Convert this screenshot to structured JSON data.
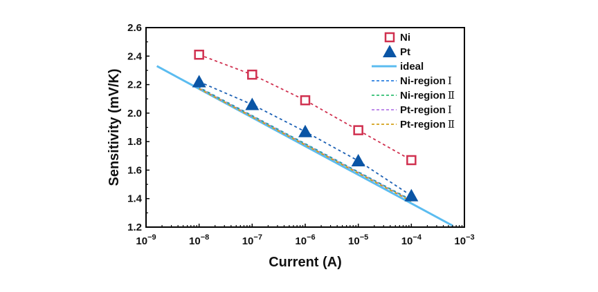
{
  "chart_data": {
    "type": "scatter",
    "title": "",
    "xlabel": "Current (A)",
    "ylabel": "Sensitivity (mV/K)",
    "xscale": "log",
    "xlim": [
      1e-09,
      0.001
    ],
    "ylim": [
      1.2,
      2.6
    ],
    "x_ticks": [
      {
        "value": 1e-09,
        "base": "10",
        "exp": "−9"
      },
      {
        "value": 1e-08,
        "base": "10",
        "exp": "−8"
      },
      {
        "value": 1e-07,
        "base": "10",
        "exp": "−7"
      },
      {
        "value": 1e-06,
        "base": "10",
        "exp": "−6"
      },
      {
        "value": 1e-05,
        "base": "10",
        "exp": "−5"
      },
      {
        "value": 0.0001,
        "base": "10",
        "exp": "−4"
      },
      {
        "value": 0.001,
        "base": "10",
        "exp": "−3"
      }
    ],
    "y_ticks": [
      "1.2",
      "1.4",
      "1.6",
      "1.8",
      "2.0",
      "2.2",
      "2.4",
      "2.6"
    ],
    "grid": false,
    "legend_position": "top-right",
    "series": [
      {
        "name": "Ni",
        "kind": "marker",
        "marker": "square-open",
        "color": "#d0304f",
        "x": [
          1e-08,
          1e-07,
          1e-06,
          1e-05,
          0.0001
        ],
        "y": [
          2.41,
          2.27,
          2.09,
          1.88,
          1.67
        ],
        "connect_color": "#d0304f"
      },
      {
        "name": "Pt",
        "kind": "marker",
        "marker": "triangle-filled",
        "color": "#0a55a5",
        "x": [
          1e-08,
          1e-07,
          1e-06,
          1e-05,
          0.0001
        ],
        "y": [
          2.22,
          2.06,
          1.87,
          1.665,
          1.42
        ],
        "connect_color": "#1a5fb4"
      },
      {
        "name": "ideal",
        "kind": "line",
        "style": "solid",
        "color": "#5bbcf0",
        "x": [
          1.6e-09,
          0.0006
        ],
        "y": [
          2.33,
          1.21
        ]
      },
      {
        "name": "Ni-region",
        "numeral": "Ⅰ",
        "kind": "line",
        "style": "dashed",
        "color": "#2a7fe0",
        "x": [
          1e-08,
          0.0001
        ],
        "y": [
          2.18,
          1.39
        ]
      },
      {
        "name": "Ni-region",
        "numeral": "Ⅱ",
        "kind": "line",
        "style": "dashed",
        "color": "#2fbf71",
        "x": [
          1e-08,
          0.0001
        ],
        "y": [
          2.18,
          1.39
        ]
      },
      {
        "name": "Pt-region",
        "numeral": "Ⅰ",
        "kind": "line",
        "style": "dashed",
        "color": "#b57be8",
        "x": [
          1e-08,
          0.0001
        ],
        "y": [
          2.18,
          1.39
        ]
      },
      {
        "name": "Pt-region",
        "numeral": "Ⅱ",
        "kind": "line",
        "style": "dashed",
        "color": "#d4a017",
        "x": [
          1e-08,
          0.0001
        ],
        "y": [
          2.18,
          1.39
        ]
      }
    ]
  }
}
